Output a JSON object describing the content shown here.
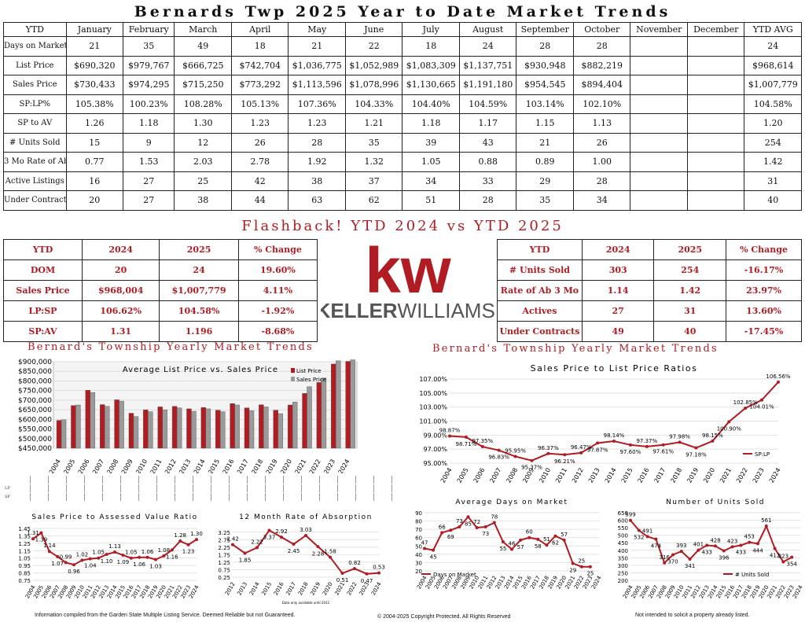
{
  "title": "Bernards Twp 2025 Year to Date Market Trends",
  "monthly": {
    "headers": [
      "YTD",
      "January",
      "February",
      "March",
      "April",
      "May",
      "June",
      "July",
      "August",
      "September",
      "October",
      "November",
      "December",
      "YTD AVG"
    ],
    "rows": [
      {
        "label": "Days on Market",
        "values": [
          "21",
          "35",
          "49",
          "18",
          "21",
          "22",
          "18",
          "24",
          "28",
          "28",
          "",
          "",
          "24"
        ]
      },
      {
        "label": "List Price",
        "values": [
          "$690,320",
          "$979,767",
          "$666,725",
          "$742,704",
          "$1,036,775",
          "$1,052,989",
          "$1,083,309",
          "$1,137,751",
          "$930,948",
          "$882,219",
          "",
          "",
          "$968,614"
        ]
      },
      {
        "label": "Sales Price",
        "values": [
          "$730,433",
          "$974,295",
          "$715,250",
          "$773,292",
          "$1,113,596",
          "$1,078,996",
          "$1,130,665",
          "$1,191,180",
          "$954,545",
          "$894,404",
          "",
          "",
          "$1,007,779"
        ]
      },
      {
        "label": "SP:LP%",
        "values": [
          "105.38%",
          "100.23%",
          "108.28%",
          "105.13%",
          "107.36%",
          "104.33%",
          "104.40%",
          "104.59%",
          "103.14%",
          "102.10%",
          "",
          "",
          "104.58%"
        ]
      },
      {
        "label": "SP to AV",
        "values": [
          "1.26",
          "1.18",
          "1.30",
          "1.23",
          "1.23",
          "1.21",
          "1.18",
          "1.17",
          "1.15",
          "1.13",
          "",
          "",
          "1.20"
        ]
      },
      {
        "label": "# Units Sold",
        "values": [
          "15",
          "9",
          "12",
          "26",
          "28",
          "35",
          "39",
          "43",
          "21",
          "26",
          "",
          "",
          "254"
        ]
      },
      {
        "label": "3 Mo Rate of Ab",
        "values": [
          "0.77",
          "1.53",
          "2.03",
          "2.78",
          "1.92",
          "1.32",
          "1.05",
          "0.88",
          "0.89",
          "1.00",
          "",
          "",
          "1.42"
        ]
      },
      {
        "label": "Active Listings",
        "values": [
          "16",
          "27",
          "25",
          "42",
          "38",
          "37",
          "34",
          "33",
          "29",
          "28",
          "",
          "",
          "31"
        ]
      },
      {
        "label": "Under Contracts",
        "values": [
          "20",
          "27",
          "38",
          "44",
          "63",
          "62",
          "51",
          "28",
          "35",
          "34",
          "",
          "",
          "40"
        ]
      }
    ]
  },
  "flashback_title": "Flashback!  YTD 2024 vs YTD 2025",
  "flash_left": {
    "headers": [
      "YTD",
      "2024",
      "2025",
      "% Change"
    ],
    "rows": [
      [
        "DOM",
        "20",
        "24",
        "19.60%"
      ],
      [
        "Sales Price",
        "$968,004",
        "$1,007,779",
        "4.11%"
      ],
      [
        "LP:SP",
        "106.62%",
        "104.58%",
        "-1.92%"
      ],
      [
        "SP:AV",
        "1.31",
        "1.196",
        "-8.68%"
      ]
    ]
  },
  "flash_right": {
    "headers": [
      "YTD",
      "2024",
      "2025",
      "% Change"
    ],
    "rows": [
      [
        "# Units Sold",
        "303",
        "254",
        "-16.17%"
      ],
      [
        "Rate of Ab 3 Mo",
        "1.14",
        "1.42",
        "23.97%"
      ],
      [
        "Actives",
        "27",
        "31",
        "13.60%"
      ],
      [
        "Under Contracts",
        "49",
        "40",
        "-17.45%"
      ]
    ]
  },
  "logo": {
    "kw": "kw",
    "text_bold": "KELLER",
    "text_light": "WILLIAMS",
    "registered": "®",
    "color": "#b01c22"
  },
  "section_left_title": "Bernard's Township Yearly Market Trends",
  "section_right_title": "Bernard's Township Yearly Market Trends",
  "footer": {
    "left": "Information compiled from the Garden State Multiple Listing Service.  Deemed Reliable but not Guaranteed.",
    "center": "© 2004-2025 Copyright Protected.  All Rights Reserved",
    "right": "Not intended to solicit a property already listed."
  },
  "chart_data": [
    {
      "type": "bar",
      "title": "Average List Price vs. Sales Price",
      "categories": [
        "2004",
        "2005",
        "2006",
        "2007",
        "2008",
        "2009",
        "2010",
        "2011",
        "2012",
        "2013",
        "2014",
        "2015",
        "2016",
        "2017",
        "2018",
        "2019",
        "2020",
        "2021",
        "2022",
        "2023",
        "2024"
      ],
      "series": [
        {
          "name": "List Price",
          "color": "#b01c22",
          "values": [
            595000,
            672000,
            752000,
            677000,
            702000,
            632000,
            650000,
            665000,
            668000,
            655000,
            662000,
            648000,
            682000,
            660000,
            676000,
            648000,
            675000,
            735000,
            792000,
            888000,
            902000
          ]
        },
        {
          "name": "Sales Price",
          "color": "#9a9a9a",
          "values": [
            598000,
            675000,
            740000,
            668000,
            695000,
            615000,
            640000,
            650000,
            660000,
            642000,
            655000,
            640000,
            675000,
            645000,
            665000,
            630000,
            690000,
            770000,
            815000,
            905000,
            910000
          ]
        }
      ],
      "y_tick_labels": [
        "$900,000",
        "$850,000",
        "$800,000",
        "$750,000",
        "$700,000",
        "$650,000",
        "$600,000",
        "$550,000",
        "$500,000",
        "$450,000"
      ],
      "ylim": [
        450000,
        900000
      ],
      "legend": "top-right",
      "small_table_labels": {
        "row1": "LP",
        "row2": "SP"
      }
    },
    {
      "type": "line",
      "title": "Sales Price to List Price Ratios",
      "x": [
        "2004",
        "2005",
        "2006",
        "2007",
        "2008",
        "2009",
        "2010",
        "2011",
        "2012",
        "2013",
        "2014",
        "2015",
        "2016",
        "2017",
        "2018",
        "2019",
        "2020",
        "2021",
        "2022",
        "2023",
        "2024"
      ],
      "series": [
        {
          "name": "SP:LP",
          "values": [
            98.87,
            98.71,
            97.35,
            96.83,
            95.95,
            95.37,
            96.37,
            96.21,
            96.47,
            97.87,
            98.14,
            97.6,
            97.37,
            97.61,
            97.98,
            97.18,
            98.15,
            100.9,
            102.85,
            104.01,
            106.56
          ]
        }
      ],
      "data_labels": [
        "98.87%",
        "98.71%",
        "97.35%",
        "96.83%",
        "95.95%",
        "95.37%",
        "96.37%",
        "96.21%",
        "96.47%",
        "97.87%",
        "98.14%",
        "97.60%",
        "97.37%",
        "97.61%",
        "97.98%",
        "97.18%",
        "98.15%",
        "100.90%",
        "102.85%",
        "104.01%",
        "106.56%"
      ],
      "y_tick_labels": [
        "107.00%",
        "105.00%",
        "103.00%",
        "101.00%",
        "99.00%",
        "97.00%",
        "95.00%"
      ],
      "ylim": [
        95,
        107
      ],
      "legend": "bottom-right"
    },
    {
      "type": "line",
      "title": "Sales Price to Assessed Value Ratio",
      "x": [
        "2004",
        "2005",
        "2006",
        "2007",
        "2008",
        "2009",
        "2010",
        "2011",
        "2012",
        "2013",
        "2014",
        "2015",
        "2016",
        "2017",
        "2018",
        "2019",
        "2020",
        "2021",
        "2022",
        "2023",
        "2024"
      ],
      "series": [
        {
          "values": [
            1.31,
            1.39,
            1.14,
            1.07,
            0.99,
            0.96,
            1.02,
            1.04,
            1.05,
            1.1,
            1.13,
            1.09,
            1.05,
            1.06,
            1.06,
            1.03,
            1.08,
            1.16,
            1.28,
            1.23,
            1.3
          ]
        }
      ],
      "data_labels": [
        "1.31",
        "1.39",
        "1.14",
        "1.07",
        "0.99",
        "0.96",
        "1.02",
        "1.04",
        "1.05",
        "1.10",
        "1.13",
        "1.09",
        "1.05",
        "1.06",
        "1.06",
        "1.03",
        "1.08",
        "1.16",
        "1.28",
        "1.23",
        "1.30"
      ],
      "y_tick_labels": [
        "1.45",
        "1.35",
        "1.25",
        "1.15",
        "1.05",
        "0.95",
        "0.85",
        "0.75"
      ],
      "ylim": [
        0.75,
        1.45
      ]
    },
    {
      "type": "line",
      "title": "12 Month Rate of Absorption",
      "x": [
        "2012",
        "2013",
        "2014",
        "2015",
        "2016",
        "2017",
        "2018",
        "2019",
        "2020",
        "2021",
        "2022",
        "2023",
        "2024"
      ],
      "series": [
        {
          "values": [
            2.42,
            1.85,
            2.22,
            3.37,
            2.92,
            2.45,
            3.03,
            2.28,
            1.58,
            0.51,
            0.82,
            0.47,
            0.53
          ]
        }
      ],
      "data_labels": [
        "2.42",
        "1.85",
        "2.22",
        "3.37",
        "2.92",
        "2.45",
        "3.03",
        "2.28",
        "1.58",
        "0.51",
        "0.82",
        "0.47",
        "0.53"
      ],
      "y_tick_labels": [
        "3.25",
        "2.75",
        "2.25",
        "1.75",
        "1.25",
        "0.75",
        "0.25"
      ],
      "ylim": [
        0.25,
        3.5
      ],
      "note": "Data only available until 2012"
    },
    {
      "type": "line",
      "title": "Average Days on Market",
      "x": [
        "2004",
        "2005",
        "2006",
        "2007",
        "2008",
        "2009",
        "2010",
        "2011",
        "2012",
        "2013",
        "2014",
        "2015",
        "2016",
        "2017",
        "2018",
        "2019",
        "2020",
        "2021",
        "2022",
        "2023",
        "2024"
      ],
      "series": [
        {
          "name": "Days on Market",
          "values": [
            47,
            45,
            66,
            69,
            73,
            85,
            72,
            73,
            78,
            55,
            46,
            57,
            60,
            58,
            51,
            62,
            57,
            29,
            25,
            25,
            null
          ]
        }
      ],
      "data_labels": [
        "47",
        "45",
        "66",
        "69",
        "73",
        "85",
        "72",
        "73",
        "78",
        "55",
        "46",
        "57",
        "60",
        "58",
        "51",
        "62",
        "57",
        "29",
        "25",
        "25",
        ""
      ],
      "y_tick_labels": [
        "90",
        "80",
        "70",
        "60",
        "50",
        "40",
        "30",
        "20"
      ],
      "ylim": [
        20,
        90
      ],
      "legend": "bottom-left"
    },
    {
      "type": "line",
      "title": "Number of Units Sold",
      "x": [
        "2004",
        "2005",
        "2006",
        "2007",
        "2008",
        "2009",
        "2010",
        "2011",
        "2012",
        "2013",
        "2014",
        "2015",
        "2016",
        "2017",
        "2018",
        "2019",
        "2020",
        "2021",
        "2022",
        "2023",
        "2024"
      ],
      "series": [
        {
          "name": "# Units Sold",
          "values": [
            599,
            532,
            491,
            474,
            316,
            370,
            393,
            341,
            401,
            433,
            428,
            396,
            423,
            433,
            453,
            444,
            561,
            412,
            323,
            354,
            null
          ]
        }
      ],
      "data_labels": [
        "599",
        "532",
        "491",
        "474",
        "316",
        "370",
        "393",
        "341",
        "401",
        "433",
        "428",
        "396",
        "423",
        "433",
        "453",
        "444",
        "561",
        "412",
        "323",
        "354",
        ""
      ],
      "y_tick_labels": [
        "650",
        "600",
        "550",
        "500",
        "450",
        "400",
        "350",
        "300",
        "250",
        "200"
      ],
      "ylim": [
        200,
        650
      ],
      "legend": "bottom-right"
    }
  ]
}
